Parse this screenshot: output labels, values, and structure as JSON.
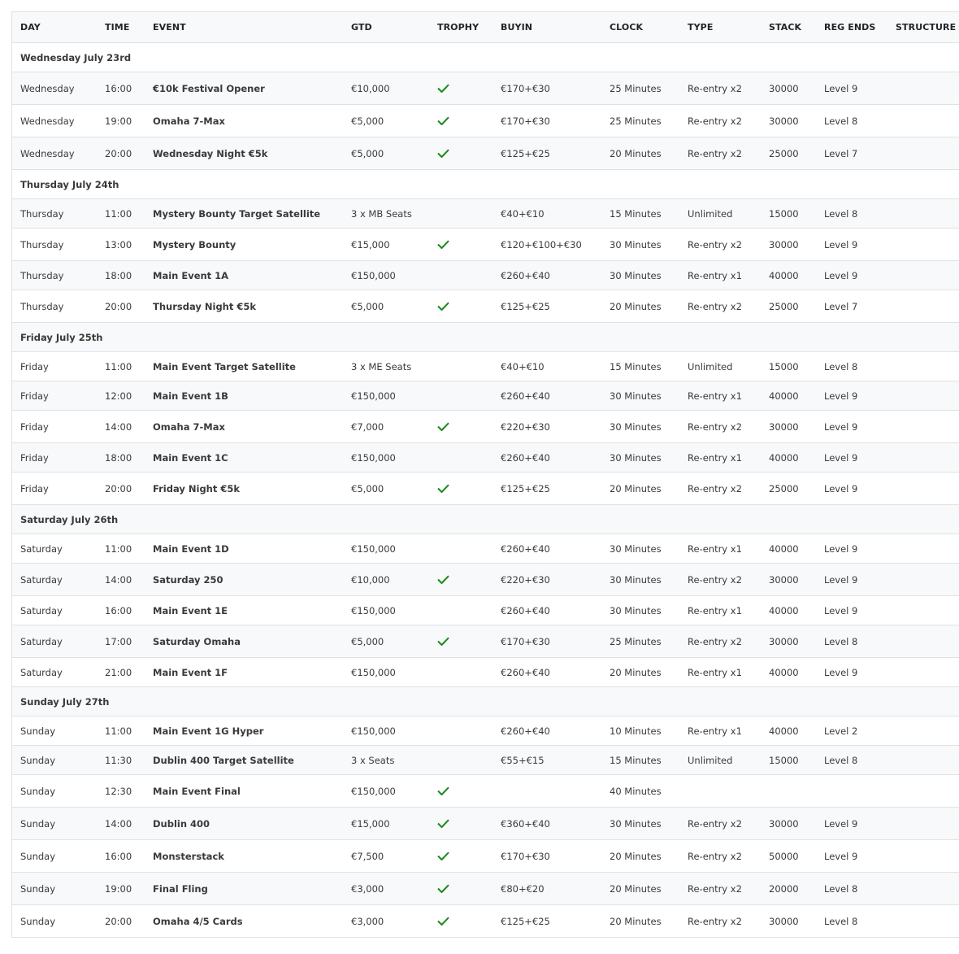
{
  "columns": [
    "DAY",
    "TIME",
    "EVENT",
    "GTD",
    "TROPHY",
    "BUYIN",
    "CLOCK",
    "TYPE",
    "STACK",
    "REG ENDS",
    "STRUCTURE"
  ],
  "trophy_color": "#1a8a1a",
  "groups": [
    {
      "title": "Wednesday July 23rd",
      "rows": [
        {
          "day": "Wednesday",
          "time": "16:00",
          "event": "€10k Festival Opener",
          "gtd": "€10,000",
          "trophy": true,
          "buyin": "€170+€30",
          "clock": "25 Minutes",
          "type": "Re-entry x2",
          "stack": "30000",
          "reg_ends": "Level 9"
        },
        {
          "day": "Wednesday",
          "time": "19:00",
          "event": "Omaha 7-Max",
          "gtd": "€5,000",
          "trophy": true,
          "buyin": "€170+€30",
          "clock": "25 Minutes",
          "type": "Re-entry x2",
          "stack": "30000",
          "reg_ends": "Level 8"
        },
        {
          "day": "Wednesday",
          "time": "20:00",
          "event": "Wednesday Night €5k",
          "gtd": "€5,000",
          "trophy": true,
          "buyin": "€125+€25",
          "clock": "20 Minutes",
          "type": "Re-entry x2",
          "stack": "25000",
          "reg_ends": "Level 7"
        }
      ]
    },
    {
      "title": "Thursday July 24th",
      "rows": [
        {
          "day": "Thursday",
          "time": "11:00",
          "event": "Mystery Bounty Target Satellite",
          "gtd": "3 x MB Seats",
          "trophy": false,
          "buyin": "€40+€10",
          "clock": "15 Minutes",
          "type": "Unlimited",
          "stack": "15000",
          "reg_ends": "Level 8"
        },
        {
          "day": "Thursday",
          "time": "13:00",
          "event": "Mystery Bounty",
          "gtd": "€15,000",
          "trophy": true,
          "buyin": "€120+€100+€30",
          "clock": "30 Minutes",
          "type": "Re-entry x2",
          "stack": "30000",
          "reg_ends": "Level 9"
        },
        {
          "day": "Thursday",
          "time": "18:00",
          "event": "Main Event 1A",
          "gtd": "€150,000",
          "trophy": false,
          "buyin": "€260+€40",
          "clock": "30 Minutes",
          "type": "Re-entry x1",
          "stack": "40000",
          "reg_ends": "Level 9"
        },
        {
          "day": "Thursday",
          "time": "20:00",
          "event": "Thursday Night €5k",
          "gtd": "€5,000",
          "trophy": true,
          "buyin": "€125+€25",
          "clock": "20 Minutes",
          "type": "Re-entry x2",
          "stack": "25000",
          "reg_ends": "Level 7"
        }
      ]
    },
    {
      "title": "Friday July 25th",
      "rows": [
        {
          "day": "Friday",
          "time": "11:00",
          "event": "Main Event Target Satellite",
          "gtd": "3 x ME Seats",
          "trophy": false,
          "buyin": "€40+€10",
          "clock": "15 Minutes",
          "type": "Unlimited",
          "stack": "15000",
          "reg_ends": "Level 8"
        },
        {
          "day": "Friday",
          "time": "12:00",
          "event": "Main Event 1B",
          "gtd": "€150,000",
          "trophy": false,
          "buyin": "€260+€40",
          "clock": "30 Minutes",
          "type": "Re-entry x1",
          "stack": "40000",
          "reg_ends": "Level 9"
        },
        {
          "day": "Friday",
          "time": "14:00",
          "event": "Omaha 7-Max",
          "gtd": "€7,000",
          "trophy": true,
          "buyin": "€220+€30",
          "clock": "30 Minutes",
          "type": "Re-entry x2",
          "stack": "30000",
          "reg_ends": "Level 9"
        },
        {
          "day": "Friday",
          "time": "18:00",
          "event": "Main Event 1C",
          "gtd": "€150,000",
          "trophy": false,
          "buyin": "€260+€40",
          "clock": "30 Minutes",
          "type": "Re-entry x1",
          "stack": "40000",
          "reg_ends": "Level 9"
        },
        {
          "day": "Friday",
          "time": "20:00",
          "event": "Friday Night €5k",
          "gtd": "€5,000",
          "trophy": true,
          "buyin": "€125+€25",
          "clock": "20 Minutes",
          "type": "Re-entry x2",
          "stack": "25000",
          "reg_ends": "Level 9"
        }
      ]
    },
    {
      "title": "Saturday July 26th",
      "rows": [
        {
          "day": "Saturday",
          "time": "11:00",
          "event": "Main Event 1D",
          "gtd": "€150,000",
          "trophy": false,
          "buyin": "€260+€40",
          "clock": "30 Minutes",
          "type": "Re-entry x1",
          "stack": "40000",
          "reg_ends": "Level 9"
        },
        {
          "day": "Saturday",
          "time": "14:00",
          "event": "Saturday 250",
          "gtd": "€10,000",
          "trophy": true,
          "buyin": "€220+€30",
          "clock": "30 Minutes",
          "type": "Re-entry x2",
          "stack": "30000",
          "reg_ends": "Level 9"
        },
        {
          "day": "Saturday",
          "time": "16:00",
          "event": "Main Event 1E",
          "gtd": "€150,000",
          "trophy": false,
          "buyin": "€260+€40",
          "clock": "30 Minutes",
          "type": "Re-entry x1",
          "stack": "40000",
          "reg_ends": "Level 9"
        },
        {
          "day": "Saturday",
          "time": "17:00",
          "event": "Saturday Omaha",
          "gtd": "€5,000",
          "trophy": true,
          "buyin": "€170+€30",
          "clock": "25 Minutes",
          "type": "Re-entry x2",
          "stack": "30000",
          "reg_ends": "Level 8"
        },
        {
          "day": "Saturday",
          "time": "21:00",
          "event": "Main Event 1F",
          "gtd": "€150,000",
          "trophy": false,
          "buyin": "€260+€40",
          "clock": "20 Minutes",
          "type": "Re-entry x1",
          "stack": "40000",
          "reg_ends": "Level 9"
        }
      ]
    },
    {
      "title": "Sunday July 27th",
      "rows": [
        {
          "day": "Sunday",
          "time": "11:00",
          "event": "Main Event 1G Hyper",
          "gtd": "€150,000",
          "trophy": false,
          "buyin": "€260+€40",
          "clock": "10 Minutes",
          "type": "Re-entry x1",
          "stack": "40000",
          "reg_ends": "Level 2"
        },
        {
          "day": "Sunday",
          "time": "11:30",
          "event": "Dublin 400 Target Satellite",
          "gtd": "3 x Seats",
          "trophy": false,
          "buyin": "€55+€15",
          "clock": "15 Minutes",
          "type": "Unlimited",
          "stack": "15000",
          "reg_ends": "Level 8"
        },
        {
          "day": "Sunday",
          "time": "12:30",
          "event": "Main Event Final",
          "gtd": "€150,000",
          "trophy": true,
          "buyin": "",
          "clock": "40 Minutes",
          "type": "",
          "stack": "",
          "reg_ends": ""
        },
        {
          "day": "Sunday",
          "time": "14:00",
          "event": "Dublin 400",
          "gtd": "€15,000",
          "trophy": true,
          "buyin": "€360+€40",
          "clock": "30 Minutes",
          "type": "Re-entry x2",
          "stack": "30000",
          "reg_ends": "Level 9"
        },
        {
          "day": "Sunday",
          "time": "16:00",
          "event": "Monsterstack",
          "gtd": "€7,500",
          "trophy": true,
          "buyin": "€170+€30",
          "clock": "20 Minutes",
          "type": "Re-entry x2",
          "stack": "50000",
          "reg_ends": "Level 9"
        },
        {
          "day": "Sunday",
          "time": "19:00",
          "event": "Final Fling",
          "gtd": "€3,000",
          "trophy": true,
          "buyin": "€80+€20",
          "clock": "20 Minutes",
          "type": "Re-entry x2",
          "stack": "20000",
          "reg_ends": "Level 8"
        },
        {
          "day": "Sunday",
          "time": "20:00",
          "event": "Omaha 4/5 Cards",
          "gtd": "€3,000",
          "trophy": true,
          "buyin": "€125+€25",
          "clock": "20 Minutes",
          "type": "Re-entry x2",
          "stack": "30000",
          "reg_ends": "Level 8"
        }
      ]
    }
  ]
}
